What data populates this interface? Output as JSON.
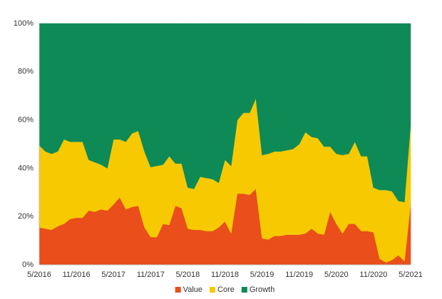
{
  "chart_data": {
    "type": "stacked-area",
    "categories": [
      "5/2016",
      null,
      null,
      null,
      null,
      null,
      "11/2016",
      null,
      null,
      null,
      null,
      null,
      "5/2017",
      null,
      null,
      null,
      null,
      null,
      "11/2017",
      null,
      null,
      null,
      null,
      null,
      "5/2018",
      null,
      null,
      null,
      null,
      null,
      "11/2018",
      null,
      null,
      null,
      null,
      null,
      "5/2019",
      null,
      null,
      null,
      null,
      null,
      "11/2019",
      null,
      null,
      null,
      null,
      null,
      "5/2020",
      null,
      null,
      null,
      null,
      null,
      "11/2020",
      null,
      null,
      null,
      null,
      null,
      "5/2021"
    ],
    "series": [
      {
        "name": "Value",
        "color": "#e94e1b",
        "values": [
          15.5,
          15,
          14.5,
          16,
          17,
          19,
          19.5,
          19.5,
          22.5,
          22,
          23,
          22.5,
          25,
          28,
          23,
          24,
          24.5,
          15.5,
          11.5,
          11.5,
          17,
          16.5,
          24.5,
          23.5,
          15,
          14.5,
          14.5,
          14,
          14,
          15.5,
          18,
          13,
          29.5,
          29.5,
          29,
          31.5,
          11,
          10.5,
          12,
          12,
          12.5,
          12.5,
          12.5,
          13,
          15,
          13,
          12.5,
          22,
          17,
          13,
          17,
          17,
          14,
          14,
          13.5,
          2.5,
          1,
          2,
          4,
          1.5,
          25
        ]
      },
      {
        "name": "Core",
        "color": "#f7c900",
        "values": [
          34,
          32,
          31.5,
          31,
          35,
          32,
          31.5,
          31.5,
          21,
          20.5,
          18.5,
          17.5,
          27,
          24,
          28,
          30.5,
          31,
          31.5,
          29,
          29.5,
          24.5,
          28.5,
          17.5,
          18.5,
          17,
          17,
          22,
          22,
          21.5,
          18.5,
          25.5,
          28,
          30.5,
          33.5,
          34,
          37.5,
          34.5,
          35.5,
          35,
          35,
          35,
          35.5,
          37.5,
          42,
          38,
          39.5,
          36.5,
          27,
          29,
          32.5,
          29,
          34,
          31,
          31,
          18.5,
          28.5,
          30,
          28.5,
          22.5,
          24.5,
          33
        ]
      },
      {
        "name": "Growth",
        "color": "#0e8a57",
        "values": [
          50.5,
          53,
          54,
          53,
          48,
          49,
          49,
          49,
          56.5,
          57.5,
          58.5,
          60,
          48,
          48,
          49,
          45.5,
          44.5,
          53,
          59.5,
          59,
          58.5,
          55,
          58,
          58,
          68,
          68.5,
          63.5,
          64,
          64.5,
          66,
          56.5,
          59,
          40,
          37,
          37,
          31,
          54.5,
          54,
          53,
          53,
          52.5,
          52,
          50,
          45,
          47,
          47.5,
          51,
          51,
          54,
          54.5,
          54,
          49,
          55,
          55,
          68,
          69,
          69,
          69.5,
          73.5,
          74,
          42
        ]
      }
    ],
    "ylim": [
      0,
      100
    ],
    "yticks": [
      {
        "value": 0,
        "label": "0%"
      },
      {
        "value": 20,
        "label": "20%"
      },
      {
        "value": 40,
        "label": "40%"
      },
      {
        "value": 60,
        "label": "60%"
      },
      {
        "value": 80,
        "label": "80%"
      },
      {
        "value": 100,
        "label": "100%"
      }
    ],
    "grid": false,
    "legend": "bottom"
  }
}
